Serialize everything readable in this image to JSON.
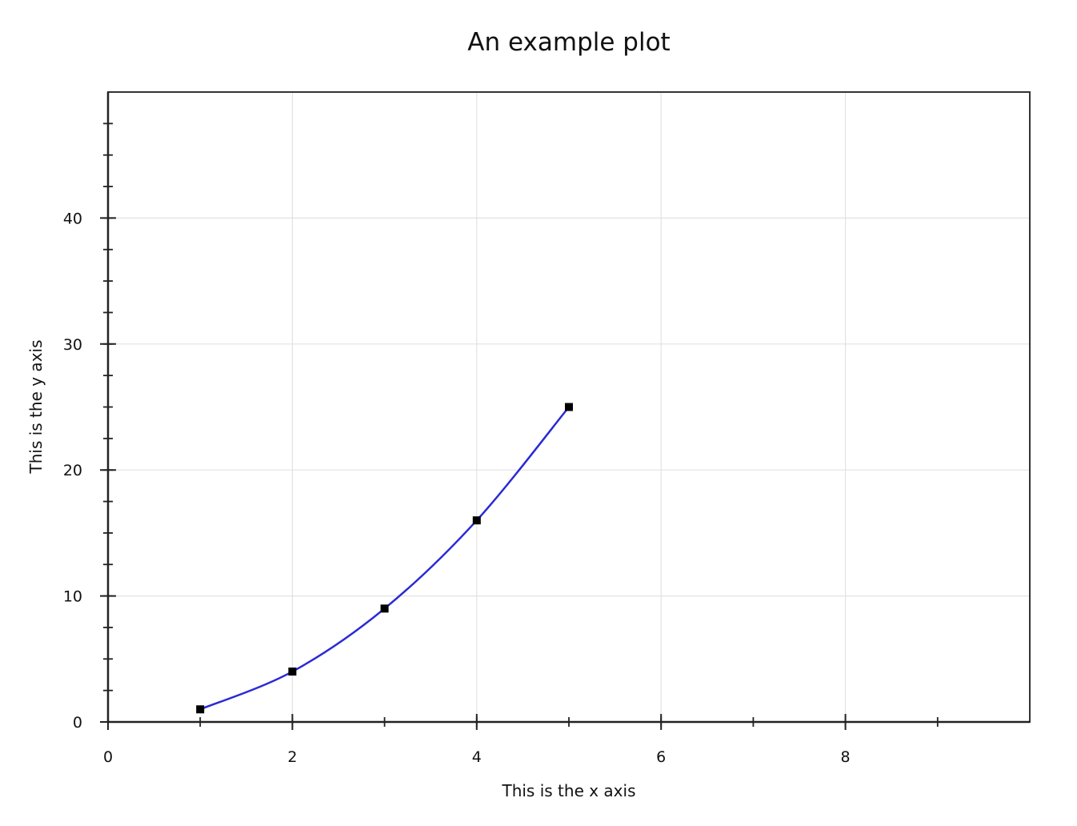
{
  "chart_data": {
    "type": "line",
    "title": "An example plot",
    "xlabel": "This is the x axis",
    "ylabel": "This is the y axis",
    "xlim": [
      0,
      10
    ],
    "ylim": [
      0,
      50
    ],
    "x_ticks": [
      0,
      2,
      4,
      6,
      8
    ],
    "y_ticks": [
      0,
      10,
      20,
      30,
      40
    ],
    "x_minor_ticks": [
      1,
      2,
      3,
      4,
      5,
      6,
      7,
      8,
      9
    ],
    "y_minor_ticks": [
      2.5,
      5,
      7.5,
      10,
      12.5,
      15,
      17.5,
      20,
      22.5,
      25,
      27.5,
      30,
      32.5,
      35,
      37.5,
      40,
      42.5,
      45,
      47.5
    ],
    "grid": true,
    "smooth": true,
    "series": [
      {
        "x": [
          1,
          2,
          3,
          4,
          5
        ],
        "y": [
          1,
          4,
          9,
          16,
          25
        ],
        "color": "#2a2ad6",
        "marker": "square",
        "marker_color": "#000000"
      }
    ]
  },
  "colors": {
    "background": "#ffffff",
    "frame": "#333333",
    "grid": "#e2e2e2",
    "axis": "#222222"
  }
}
